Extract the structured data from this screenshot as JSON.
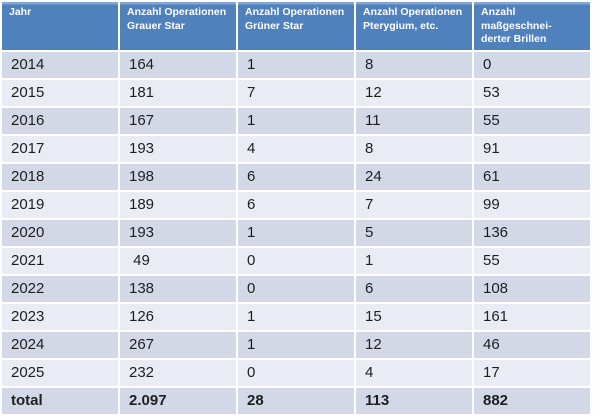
{
  "colors": {
    "header_bg": "#4f81bd",
    "header_top": "#84a7d1",
    "band_dark": "#d2d8e6",
    "band_light": "#e9ecf4",
    "text_color": "#1f1f1f",
    "header_text": "#ffffff",
    "page_bg": "#fdfdfd"
  },
  "chart_data": {
    "type": "table",
    "columns": [
      "Jahr",
      "Anzahl Operationen\nGrauer Star",
      "Anzahl Operationen\nGrüner Star",
      "Anzahl Operationen\nPterygium, etc.",
      "Anzahl maßgeschnei-\nderter Brillen"
    ],
    "rows": [
      [
        "2014",
        "164",
        "1",
        "8",
        "0"
      ],
      [
        "2015",
        "181",
        "7",
        "12",
        "53"
      ],
      [
        "2016",
        "167",
        "1",
        "11",
        "55"
      ],
      [
        "2017",
        "193",
        "4",
        "8",
        "91"
      ],
      [
        "2018",
        "198",
        "6",
        "24",
        "61"
      ],
      [
        "2019",
        "189",
        "6",
        "7",
        "99"
      ],
      [
        "2020",
        "193",
        "1",
        "5",
        "136"
      ],
      [
        "2021",
        " 49",
        "0",
        "1",
        "55"
      ],
      [
        "2022",
        "138",
        "0",
        "6",
        "108"
      ],
      [
        "2023",
        "126",
        "1",
        "15",
        "161"
      ],
      [
        "2024",
        "267",
        "1",
        "12",
        "46"
      ],
      [
        "2025",
        "232",
        "0",
        "4",
        "17"
      ]
    ],
    "total_row": [
      "total",
      "2.097",
      "28",
      "113",
      "882"
    ]
  }
}
